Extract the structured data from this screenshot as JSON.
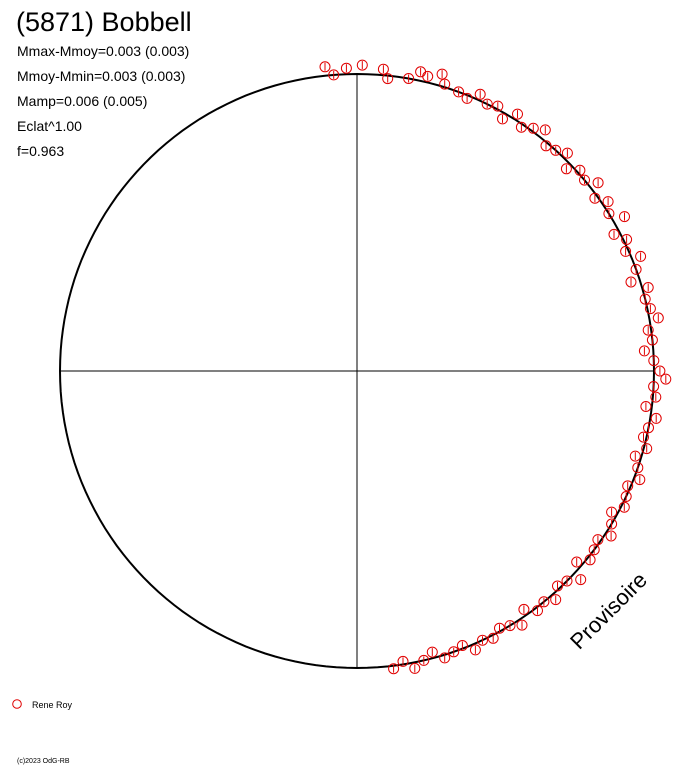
{
  "chart_data": {
    "type": "scatter",
    "title": "(5871) Bobbell",
    "stats": [
      "Mmax-Mmoy=0.003 (0.003)",
      "Mmoy-Mmin=0.003 (0.003)",
      "Mamp=0.006 (0.005)",
      "Eclat^1.00",
      "f=0.963"
    ],
    "legend": [
      {
        "label": "Rene Roy",
        "color": "#e00000"
      }
    ],
    "copyright": "(c)2023 OdG-RB",
    "watermark": "Provisoire",
    "radius_base": 1.0,
    "fit_color": "#000000",
    "marker_color": "#e00000",
    "series": [
      {
        "name": "Rene Roy",
        "points": [
          {
            "angle": 92.0,
            "r": 1.02
          },
          {
            "angle": 89.0,
            "r": 1.03
          },
          {
            "angle": 94.5,
            "r": 1.0
          },
          {
            "angle": 96.0,
            "r": 1.03
          },
          {
            "angle": 85.0,
            "r": 1.02
          },
          {
            "angle": 84.0,
            "r": 0.99
          },
          {
            "angle": 80.0,
            "r": 1.0
          },
          {
            "angle": 78.0,
            "r": 1.03
          },
          {
            "angle": 76.5,
            "r": 1.02
          },
          {
            "angle": 74.0,
            "r": 1.04
          },
          {
            "angle": 73.0,
            "r": 1.01
          },
          {
            "angle": 70.0,
            "r": 1.0
          },
          {
            "angle": 68.0,
            "r": 0.99
          },
          {
            "angle": 66.0,
            "r": 1.02
          },
          {
            "angle": 64.0,
            "r": 1.0
          },
          {
            "angle": 62.0,
            "r": 1.01
          },
          {
            "angle": 60.0,
            "r": 0.98
          },
          {
            "angle": 58.0,
            "r": 1.02
          },
          {
            "angle": 56.0,
            "r": 0.99
          },
          {
            "angle": 54.0,
            "r": 1.01
          },
          {
            "angle": 52.0,
            "r": 1.03
          },
          {
            "angle": 50.0,
            "r": 0.99
          },
          {
            "angle": 48.0,
            "r": 1.0
          },
          {
            "angle": 46.0,
            "r": 1.02
          },
          {
            "angle": 44.0,
            "r": 0.98
          },
          {
            "angle": 42.0,
            "r": 1.01
          },
          {
            "angle": 40.0,
            "r": 1.0
          },
          {
            "angle": 38.0,
            "r": 1.03
          },
          {
            "angle": 36.0,
            "r": 0.99
          },
          {
            "angle": 34.0,
            "r": 1.02
          },
          {
            "angle": 32.0,
            "r": 1.0
          },
          {
            "angle": 30.0,
            "r": 1.04
          },
          {
            "angle": 28.0,
            "r": 0.98
          },
          {
            "angle": 26.0,
            "r": 1.01
          },
          {
            "angle": 24.0,
            "r": 0.99
          },
          {
            "angle": 22.0,
            "r": 1.03
          },
          {
            "angle": 20.0,
            "r": 1.0
          },
          {
            "angle": 18.0,
            "r": 0.97
          },
          {
            "angle": 16.0,
            "r": 1.02
          },
          {
            "angle": 14.0,
            "r": 1.0
          },
          {
            "angle": 12.0,
            "r": 1.01
          },
          {
            "angle": 10.0,
            "r": 1.03
          },
          {
            "angle": 8.0,
            "r": 0.99
          },
          {
            "angle": 6.0,
            "r": 1.0
          },
          {
            "angle": 4.0,
            "r": 0.97
          },
          {
            "angle": 2.0,
            "r": 1.0
          },
          {
            "angle": 0.0,
            "r": 1.02
          },
          {
            "angle": -1.5,
            "r": 1.04
          },
          {
            "angle": -3.0,
            "r": 1.0
          },
          {
            "angle": -5.0,
            "r": 1.01
          },
          {
            "angle": -7.0,
            "r": 0.98
          },
          {
            "angle": -9.0,
            "r": 1.02
          },
          {
            "angle": -11.0,
            "r": 1.0
          },
          {
            "angle": -13.0,
            "r": 0.99
          },
          {
            "angle": -15.0,
            "r": 1.01
          },
          {
            "angle": -17.0,
            "r": 0.98
          },
          {
            "angle": -19.0,
            "r": 1.0
          },
          {
            "angle": -21.0,
            "r": 1.02
          },
          {
            "angle": -23.0,
            "r": 0.99
          },
          {
            "angle": -25.0,
            "r": 1.0
          },
          {
            "angle": -27.0,
            "r": 1.01
          },
          {
            "angle": -29.0,
            "r": 0.98
          },
          {
            "angle": -31.0,
            "r": 1.0
          },
          {
            "angle": -33.0,
            "r": 1.02
          },
          {
            "angle": -35.0,
            "r": 0.99
          },
          {
            "angle": -37.0,
            "r": 1.0
          },
          {
            "angle": -39.0,
            "r": 1.01
          },
          {
            "angle": -41.0,
            "r": 0.98
          },
          {
            "angle": -43.0,
            "r": 1.03
          },
          {
            "angle": -45.0,
            "r": 1.0
          },
          {
            "angle": -47.0,
            "r": 0.99
          },
          {
            "angle": -49.0,
            "r": 1.02
          },
          {
            "angle": -51.0,
            "r": 1.0
          },
          {
            "angle": -53.0,
            "r": 1.01
          },
          {
            "angle": -55.0,
            "r": 0.98
          },
          {
            "angle": -57.0,
            "r": 1.02
          },
          {
            "angle": -59.0,
            "r": 1.0
          },
          {
            "angle": -61.0,
            "r": 0.99
          },
          {
            "angle": -63.0,
            "r": 1.01
          },
          {
            "angle": -65.0,
            "r": 1.0
          },
          {
            "angle": -67.0,
            "r": 1.02
          },
          {
            "angle": -69.0,
            "r": 0.99
          },
          {
            "angle": -71.0,
            "r": 1.0
          },
          {
            "angle": -73.0,
            "r": 1.01
          },
          {
            "angle": -75.0,
            "r": 0.98
          },
          {
            "angle": -77.0,
            "r": 1.0
          },
          {
            "angle": -79.0,
            "r": 1.02
          },
          {
            "angle": -81.0,
            "r": 0.99
          },
          {
            "angle": -83.0,
            "r": 1.01
          }
        ]
      }
    ]
  }
}
